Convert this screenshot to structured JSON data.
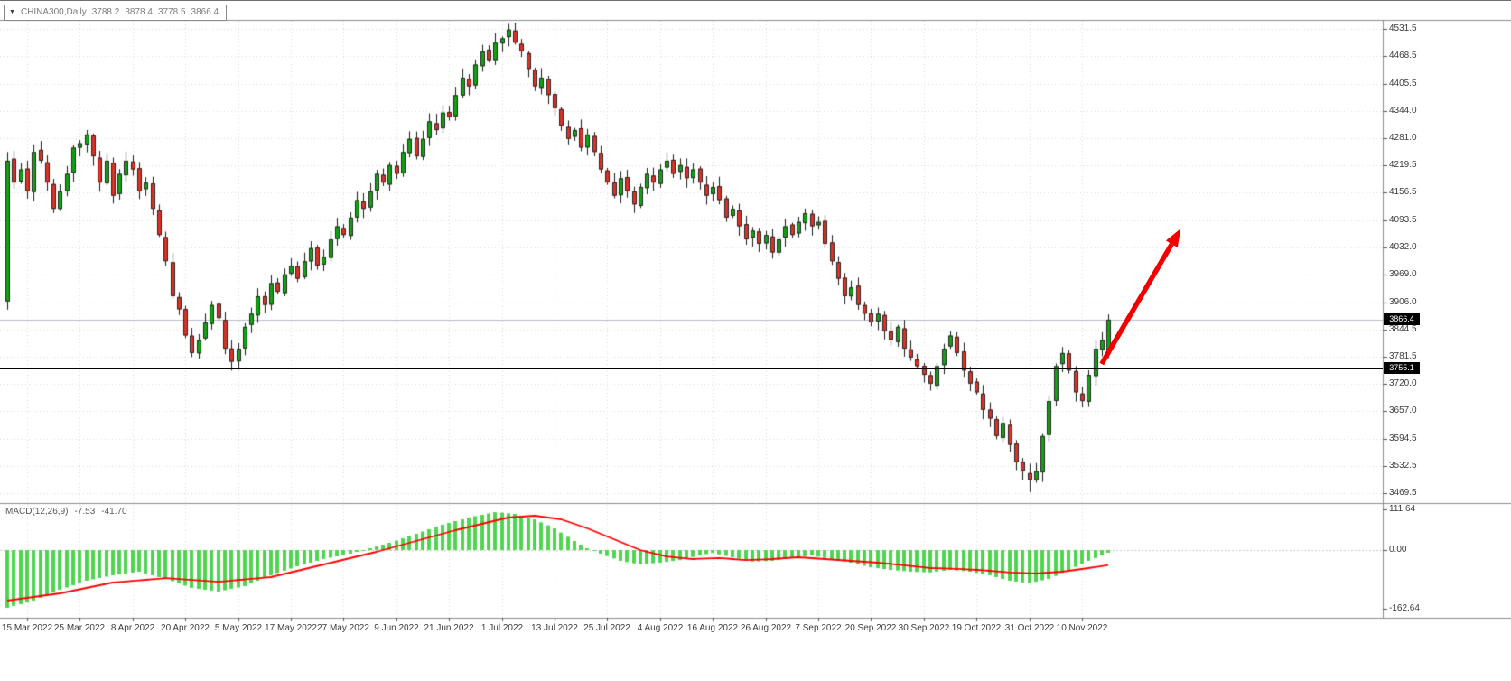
{
  "header": {
    "dropdown_icon": "▼",
    "symbol_with_timeframe": "CHINA300,Daily",
    "ohlc": {
      "open": "3788.2",
      "high": "3878.4",
      "low": "3778.5",
      "close": "3866.4"
    }
  },
  "price_axis": {
    "ticks": [
      "4531.5",
      "4468.5",
      "4405.5",
      "4344.0",
      "4281.0",
      "4219.5",
      "4156.5",
      "4093.5",
      "4032.0",
      "3969.0",
      "3906.0",
      "3844.5",
      "3781.5",
      "3720.0",
      "3657.0",
      "3594.5",
      "3532.5",
      "3469.5"
    ]
  },
  "date_axis": {
    "labels": [
      "15 Mar 2022",
      "25 Mar 2022",
      "8 Apr 2022",
      "20 Apr 2022",
      "5 May 2022",
      "17 May 2022",
      "27 May 2022",
      "9 Jun 2022",
      "21 Jun 2022",
      "1 Jul 2022",
      "13 Jul 2022",
      "25 Jul 2022",
      "4 Aug 2022",
      "16 Aug 2022",
      "26 Aug 2022",
      "7 Sep 2022",
      "20 Sep 2022",
      "30 Sep 2022",
      "19 Oct 2022",
      "31 Oct 2022",
      "10 Nov 2022"
    ]
  },
  "macd_panel": {
    "label": "MACD(12,26,9)",
    "value_main": "-7.53",
    "value_signal": "-41.70",
    "axis_ticks": [
      "111.64",
      "0.00",
      "-162.64"
    ]
  },
  "price_markers": {
    "current": "3866.4",
    "hline": "3755.1"
  },
  "colors": {
    "up_candle": "#12a312",
    "down_candle": "#df3126",
    "candle_outline": "#262626",
    "wick": "#1a1a1a",
    "macd_histogram": "#4fd44f",
    "macd_signal": "#ff0000",
    "grid": "#d9d9d9",
    "separator": "#8c8c8c",
    "hline": "#000000",
    "current_price_line": "#b9bdcb",
    "tag_background": "#000000",
    "arrow": "#f20000"
  },
  "chart_data": {
    "type": "candlestick",
    "symbol": "CHINA300",
    "timeframe": "Daily",
    "title": "CHINA300,Daily",
    "last_ohlc": {
      "open": 3788.2,
      "high": 3878.4,
      "low": 3778.5,
      "close": 3866.4
    },
    "first_open": 3908,
    "closes": [
      4230,
      4180,
      4210,
      4160,
      4250,
      4230,
      4180,
      4120,
      4160,
      4200,
      4260,
      4270,
      4290,
      4240,
      4180,
      4230,
      4150,
      4200,
      4230,
      4210,
      4160,
      4180,
      4120,
      4060,
      4000,
      3920,
      3890,
      3830,
      3790,
      3820,
      3860,
      3900,
      3870,
      3800,
      3770,
      3800,
      3850,
      3880,
      3920,
      3900,
      3950,
      3930,
      3970,
      3990,
      3960,
      4000,
      4030,
      3990,
      4010,
      4050,
      4080,
      4060,
      4100,
      4140,
      4120,
      4160,
      4200,
      4180,
      4220,
      4200,
      4250,
      4280,
      4240,
      4280,
      4320,
      4300,
      4340,
      4330,
      4380,
      4420,
      4400,
      4450,
      4480,
      4460,
      4500,
      4510,
      4530,
      4500,
      4480,
      4440,
      4400,
      4420,
      4380,
      4350,
      4310,
      4280,
      4300,
      4260,
      4290,
      4250,
      4210,
      4180,
      4150,
      4190,
      4160,
      4130,
      4170,
      4200,
      4180,
      4210,
      4230,
      4200,
      4220,
      4190,
      4210,
      4180,
      4150,
      4170,
      4140,
      4100,
      4120,
      4080,
      4050,
      4070,
      4040,
      4060,
      4020,
      4050,
      4080,
      4060,
      4090,
      4110,
      4080,
      4090,
      4040,
      4000,
      3960,
      3920,
      3940,
      3900,
      3880,
      3860,
      3880,
      3840,
      3820,
      3850,
      3800,
      3780,
      3760,
      3740,
      3720,
      3760,
      3800,
      3830,
      3790,
      3750,
      3720,
      3700,
      3660,
      3640,
      3600,
      3630,
      3580,
      3540,
      3520,
      3500,
      3520,
      3600,
      3680,
      3760,
      3790,
      3750,
      3700,
      3680,
      3740,
      3800,
      3820,
      3866.4
    ],
    "extremes": {
      "high": {
        "index": 76,
        "price": 4543
      },
      "low": {
        "index": 155,
        "price": 3472
      }
    },
    "price_ticks": [
      4531.5,
      4468.5,
      4405.5,
      4344.0,
      4281.0,
      4219.5,
      4156.5,
      4093.5,
      4032.0,
      3969.0,
      3906.0,
      3844.5,
      3781.5,
      3720.0,
      3657.0,
      3594.5,
      3532.5,
      3469.5
    ],
    "date_tick_indices": [
      3,
      11,
      19,
      27,
      35,
      43,
      51,
      59,
      67,
      75,
      83,
      91,
      99,
      107,
      115,
      123,
      131,
      139,
      147,
      155,
      163
    ],
    "current_price": 3866.4,
    "hline_price": 3755.1,
    "macd": {
      "params": "12,26,9",
      "current_main": -7.53,
      "current_signal": -41.7,
      "axis_values": [
        111.64,
        0,
        -162.64
      ],
      "histogram_anchors": [
        [
          0,
          -160
        ],
        [
          4,
          -140
        ],
        [
          8,
          -110
        ],
        [
          12,
          -85
        ],
        [
          16,
          -70
        ],
        [
          20,
          -60
        ],
        [
          24,
          -80
        ],
        [
          28,
          -105
        ],
        [
          32,
          -115
        ],
        [
          36,
          -100
        ],
        [
          40,
          -70
        ],
        [
          44,
          -45
        ],
        [
          48,
          -25
        ],
        [
          52,
          -10
        ],
        [
          55,
          5
        ],
        [
          58,
          20
        ],
        [
          62,
          45
        ],
        [
          66,
          70
        ],
        [
          70,
          90
        ],
        [
          74,
          105
        ],
        [
          77,
          100
        ],
        [
          80,
          85
        ],
        [
          83,
          60
        ],
        [
          86,
          25
        ],
        [
          88,
          5
        ],
        [
          90,
          -10
        ],
        [
          93,
          -30
        ],
        [
          96,
          -40
        ],
        [
          99,
          -35
        ],
        [
          102,
          -28
        ],
        [
          105,
          -15
        ],
        [
          107,
          -8
        ],
        [
          110,
          -20
        ],
        [
          113,
          -32
        ],
        [
          116,
          -30
        ],
        [
          119,
          -22
        ],
        [
          122,
          -15
        ],
        [
          125,
          -25
        ],
        [
          128,
          -35
        ],
        [
          131,
          -48
        ],
        [
          134,
          -55
        ],
        [
          137,
          -60
        ],
        [
          140,
          -62
        ],
        [
          143,
          -55
        ],
        [
          146,
          -60
        ],
        [
          149,
          -70
        ],
        [
          152,
          -85
        ],
        [
          155,
          -92
        ],
        [
          158,
          -80
        ],
        [
          161,
          -55
        ],
        [
          164,
          -30
        ],
        [
          167,
          -7.53
        ]
      ],
      "signal_anchors": [
        [
          0,
          -140
        ],
        [
          8,
          -120
        ],
        [
          16,
          -90
        ],
        [
          24,
          -78
        ],
        [
          32,
          -88
        ],
        [
          40,
          -75
        ],
        [
          48,
          -40
        ],
        [
          56,
          -5
        ],
        [
          60,
          15
        ],
        [
          68,
          55
        ],
        [
          76,
          90
        ],
        [
          80,
          95
        ],
        [
          84,
          85
        ],
        [
          88,
          60
        ],
        [
          92,
          30
        ],
        [
          96,
          0
        ],
        [
          100,
          -18
        ],
        [
          104,
          -25
        ],
        [
          108,
          -22
        ],
        [
          112,
          -28
        ],
        [
          116,
          -25
        ],
        [
          120,
          -20
        ],
        [
          124,
          -25
        ],
        [
          128,
          -30
        ],
        [
          132,
          -35
        ],
        [
          136,
          -42
        ],
        [
          140,
          -50
        ],
        [
          144,
          -52
        ],
        [
          148,
          -56
        ],
        [
          152,
          -62
        ],
        [
          156,
          -65
        ],
        [
          160,
          -60
        ],
        [
          164,
          -50
        ],
        [
          167,
          -41.7
        ]
      ]
    },
    "arrow_annotation": {
      "from": {
        "index": 166,
        "price": 3765
      },
      "to": {
        "index": 178,
        "price": 4075
      },
      "color": "#f20000"
    }
  }
}
